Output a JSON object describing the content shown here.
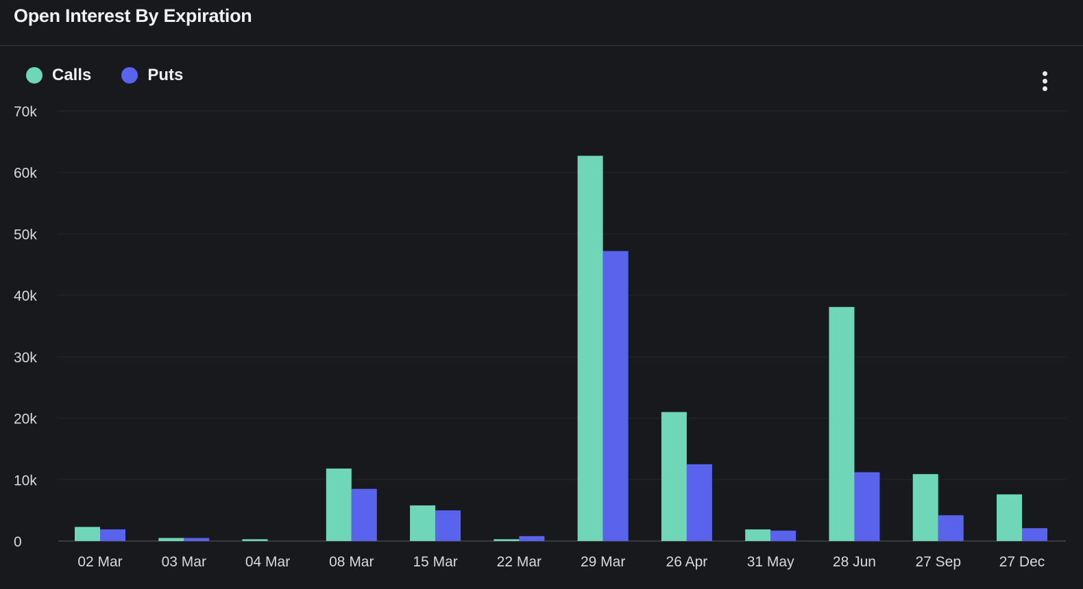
{
  "header": {
    "title": "Open Interest By Expiration"
  },
  "legend": {
    "items": [
      {
        "label": "Calls",
        "color": "#6fd6b8"
      },
      {
        "label": "Puts",
        "color": "#5a63ec"
      }
    ]
  },
  "menu": {
    "icon": "more-vertical-icon"
  },
  "chart_data": {
    "type": "bar",
    "title": "Open Interest By Expiration",
    "xlabel": "",
    "ylabel": "",
    "ylim": [
      0,
      70000
    ],
    "y_ticks": [
      0,
      10000,
      20000,
      30000,
      40000,
      50000,
      60000,
      70000
    ],
    "y_tick_labels": [
      "0",
      "10k",
      "20k",
      "30k",
      "40k",
      "50k",
      "60k",
      "70k"
    ],
    "grid": true,
    "legend_position": "top-left",
    "categories": [
      "02 Mar",
      "03 Mar",
      "04 Mar",
      "08 Mar",
      "15 Mar",
      "22 Mar",
      "29 Mar",
      "26 Apr",
      "31 May",
      "28 Jun",
      "27 Sep",
      "27 Dec"
    ],
    "series": [
      {
        "name": "Calls",
        "color": "#6fd6b8",
        "values": [
          2300,
          500,
          300,
          11800,
          5800,
          300,
          62700,
          21000,
          1900,
          38100,
          10900,
          7600
        ]
      },
      {
        "name": "Puts",
        "color": "#5a63ec",
        "values": [
          1900,
          500,
          0,
          8500,
          5000,
          800,
          47200,
          12500,
          1700,
          11200,
          4200,
          2100
        ]
      }
    ]
  }
}
